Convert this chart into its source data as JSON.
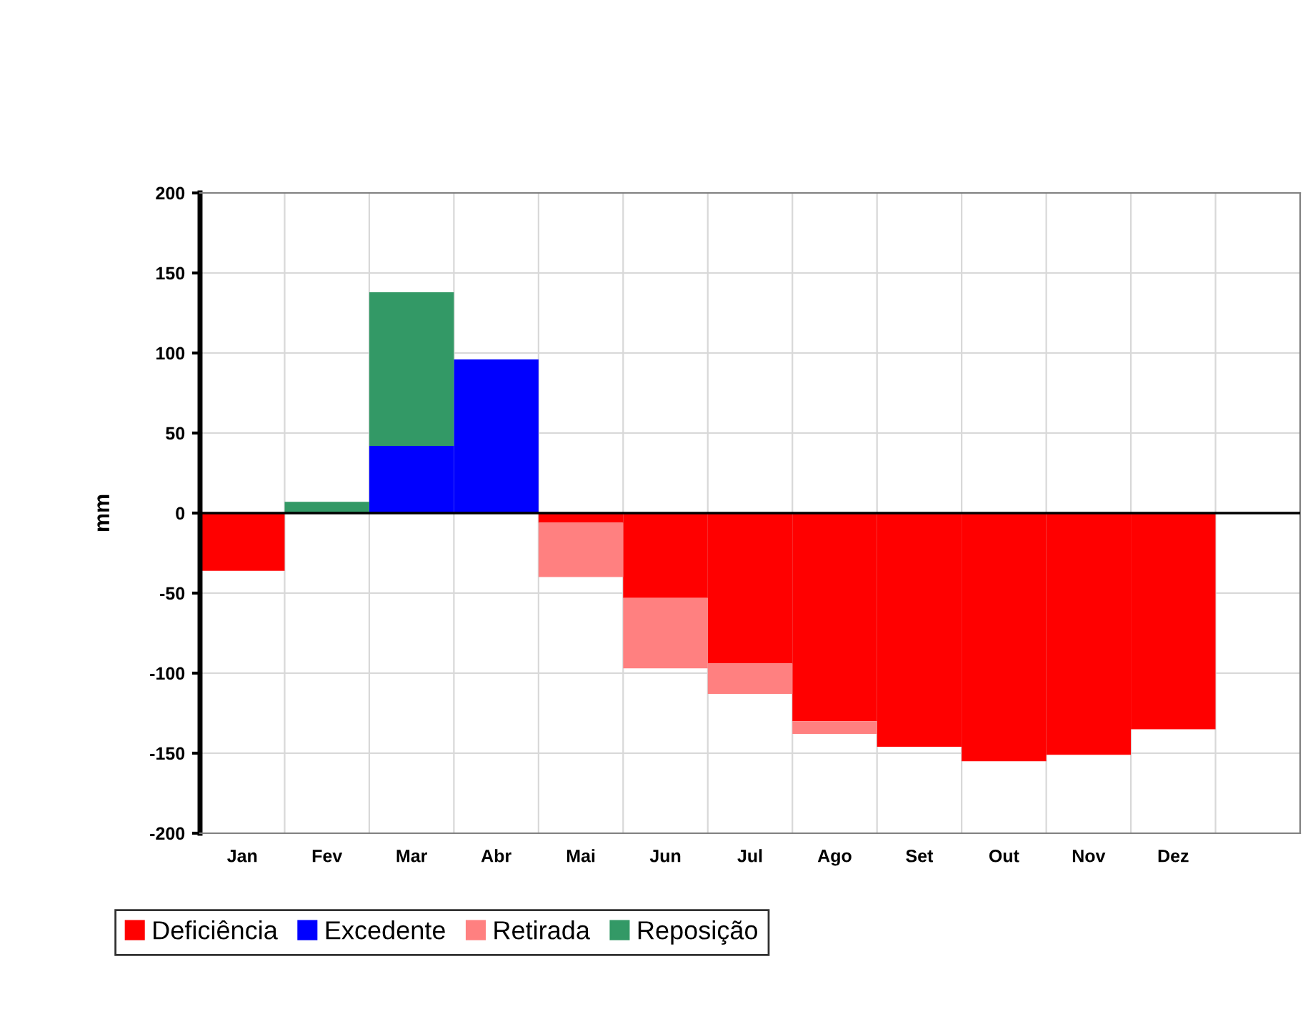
{
  "chart_data": {
    "type": "bar",
    "stacked": true,
    "ylabel": "mm",
    "categories": [
      "Jan",
      "Fev",
      "Mar",
      "Abr",
      "Mai",
      "Jun",
      "Jul",
      "Ago",
      "Set",
      "Out",
      "Nov",
      "Dez",
      null
    ],
    "series": [
      {
        "name": "Deficiência",
        "color": "#ff0000",
        "values": [
          -36,
          0,
          0,
          0,
          -6,
          -53,
          -94,
          -130,
          -146,
          -155,
          -151,
          -135,
          null
        ]
      },
      {
        "name": "Excedente",
        "color": "#0000ff",
        "values": [
          0,
          0,
          42,
          96,
          0,
          0,
          0,
          0,
          0,
          0,
          0,
          0,
          null
        ]
      },
      {
        "name": "Retirada",
        "color": "#ff8080",
        "values": [
          0,
          0,
          0,
          0,
          -34,
          -44,
          -19,
          -8,
          0,
          0,
          0,
          0,
          null
        ]
      },
      {
        "name": "Reposição",
        "color": "#339966",
        "values": [
          0,
          7,
          96,
          0,
          0,
          0,
          0,
          0,
          0,
          0,
          0,
          0,
          null
        ]
      }
    ],
    "ylim": [
      -200,
      200
    ],
    "yticks": [
      -200,
      -150,
      -100,
      -50,
      0,
      50,
      100,
      150,
      200
    ],
    "grid": true,
    "legend": "bottom"
  }
}
